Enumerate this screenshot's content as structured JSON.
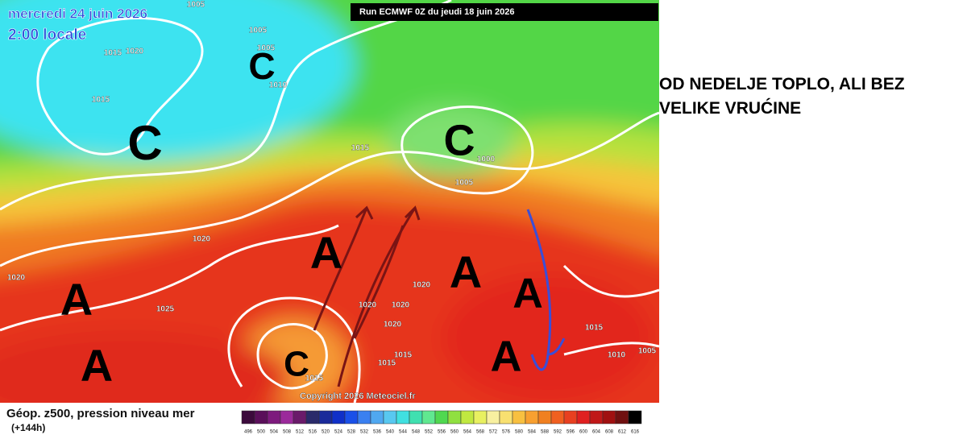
{
  "header": {
    "date": "mercredi 24 juin 2026",
    "time": "2:00 locale",
    "run": "Run ECMWF 0Z du jeudi 18 juin 2026"
  },
  "copyright": "Copyright 2026 Meteociel.fr",
  "map": {
    "labels": [
      1005,
      1005,
      1005,
      1010,
      1015,
      1020,
      1015,
      1015,
      1000,
      1005,
      1020,
      1020,
      1025,
      1020,
      1020,
      1020,
      1020,
      1015,
      1015,
      1015,
      1015,
      1010,
      1005
    ],
    "centers": [
      "C",
      "C",
      "C",
      "A",
      "A",
      "A",
      "A",
      "A",
      "A",
      "C"
    ]
  },
  "caption": {
    "lines": [
      "OD NEDELJE TOPLO, ALI BEZ",
      "VELIKE VRUĆINE"
    ]
  },
  "legend": {
    "title": "Géop. z500, pression niveau mer",
    "subtitle": "(+144h)",
    "values": [
      496,
      500,
      504,
      508,
      512,
      516,
      520,
      524,
      528,
      532,
      536,
      540,
      544,
      548,
      552,
      556,
      560,
      564,
      568,
      572,
      576,
      580,
      584,
      588,
      592,
      596,
      600,
      604,
      608,
      612,
      616
    ],
    "colors": [
      "#3c0a3c",
      "#5a0f5a",
      "#7d1a7d",
      "#9b2a9b",
      "#6a1a6a",
      "#2a2a6a",
      "#1a2a9a",
      "#1030c8",
      "#1a50e8",
      "#3a80f0",
      "#50a8f0",
      "#58c8f0",
      "#40e0e0",
      "#40e0b0",
      "#60e890",
      "#50d850",
      "#90e040",
      "#c0e840",
      "#e8f060",
      "#f8f0a0",
      "#f8e070",
      "#f8c040",
      "#f8a030",
      "#f08020",
      "#f06020",
      "#e84020",
      "#e02020",
      "#c01818",
      "#a01010",
      "#701010",
      "#000000"
    ]
  }
}
